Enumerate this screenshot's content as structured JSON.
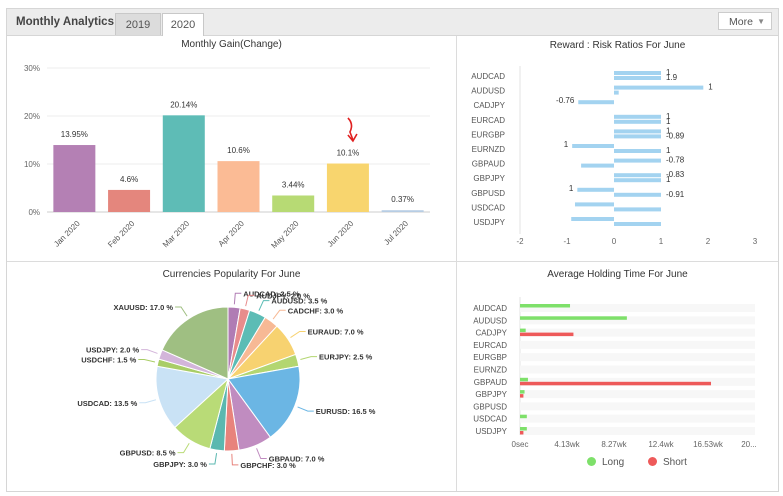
{
  "header": {
    "title": "Monthly Analytics",
    "tabs": [
      {
        "label": "2019",
        "active": false
      },
      {
        "label": "2020",
        "active": true
      }
    ],
    "more_label": "More"
  },
  "monthly_gain": {
    "title": "Monthly Gain(Change)",
    "y_ticks": [
      "30%",
      "20%",
      "10%",
      "0%"
    ],
    "chart_data": {
      "type": "bar",
      "categories": [
        "Jan 2020",
        "Feb 2020",
        "Mar 2020",
        "Apr 2020",
        "May 2020",
        "Jun 2020",
        "Jul 2020"
      ],
      "values": [
        13.95,
        4.6,
        20.14,
        10.6,
        3.44,
        10.1,
        0.37
      ],
      "labels": [
        "13.95%",
        "4.6%",
        "20.14%",
        "10.6%",
        "3.44%",
        "10.1%",
        "0.37%"
      ],
      "colors": [
        "#b480b4",
        "#e4867d",
        "#5ebcb6",
        "#fbbb95",
        "#b7da74",
        "#f8d56e",
        "#b7cde4"
      ],
      "ylim": [
        0,
        30
      ]
    }
  },
  "reward_risk": {
    "title": "Reward : Risk Ratios For June",
    "chart_data": {
      "type": "bar",
      "orientation": "horizontal",
      "categories": [
        "AUDCAD",
        "AUDUSD",
        "CADJPY",
        "EURCAD",
        "EURGBP",
        "EURNZD",
        "GBPAUD",
        "GBPJPY",
        "GBPUSD",
        "USDCAD",
        "USDJPY"
      ],
      "series": [
        {
          "values": [
            1,
            1.9,
            -0.76,
            1,
            1,
            -0.89,
            1,
            1,
            -0.78,
            -0.83,
            -0.91
          ]
        },
        {
          "values": [
            1,
            0.1,
            0,
            1,
            1,
            1,
            -0.7,
            1,
            1,
            1,
            1
          ]
        }
      ],
      "labels": [
        "1",
        "1.9",
        "1",
        "-0.76",
        "1",
        "1",
        "1",
        "-0.89",
        "1",
        "1",
        "-0.78",
        "-0.83",
        "1",
        "1",
        "-0.91"
      ],
      "x_ticks": [
        "-2",
        "-1",
        "0",
        "1",
        "2",
        "3"
      ],
      "xlim": [
        -2,
        3
      ],
      "color": "#a3d3f0"
    }
  },
  "currencies": {
    "title": "Currencies Popularity For June",
    "chart_data": {
      "type": "pie",
      "slices": [
        {
          "label": "AUDCAD",
          "value": 2.5,
          "color": "#b07cb4"
        },
        {
          "label": "AUDJPY",
          "value": 2.0,
          "color": "#e88c8c"
        },
        {
          "label": "AUDUSD",
          "value": 3.5,
          "color": "#5cbcb5"
        },
        {
          "label": "CADCHF",
          "value": 3.0,
          "color": "#f7b995"
        },
        {
          "label": "EURAUD",
          "value": 7.0,
          "color": "#f7d270"
        },
        {
          "label": "EURJPY",
          "value": 2.5,
          "color": "#b3d671"
        },
        {
          "label": "EURUSD",
          "value": 16.5,
          "color": "#6bb6e4"
        },
        {
          "label": "GBPAUD",
          "value": 7.0,
          "color": "#c08cc0"
        },
        {
          "label": "GBPCHF",
          "value": 3.0,
          "color": "#e8837c"
        },
        {
          "label": "GBPJPY",
          "value": 3.0,
          "color": "#5bb8b0"
        },
        {
          "label": "GBPUSD",
          "value": 8.5,
          "color": "#b9db77"
        },
        {
          "label": "USDCAD",
          "value": 13.5,
          "color": "#c9e2f5"
        },
        {
          "label": "USDCHF",
          "value": 1.5,
          "color": "#a9cd66"
        },
        {
          "label": "USDJPY",
          "value": 2.0,
          "color": "#d3b5da"
        },
        {
          "label": "XAUUSD",
          "value": 17.0,
          "color": "#9fbf82"
        }
      ],
      "labels": [
        "AUDCAD: 2.5 %",
        "AUDJPY: 2.0 %",
        "AUDUSD: 3.5 %",
        "CADCHF: 3.0 %",
        "EURAUD: 7.0 %",
        "EURJPY: 2.5 %",
        "EURUSD: 16.5 %",
        "GBPAUD: 7.0 %",
        "GBPCHF: 3.0 %",
        "GBPJPY: 3.0 %",
        "GBPUSD: 8.5 %",
        "USDCAD: 13.5 %",
        "USDCHF: 1.5 %",
        "USDJPY: 2.0 %",
        "XAUUSD: 17.0 %"
      ]
    }
  },
  "holding_time": {
    "title": "Average Holding Time For June",
    "chart_data": {
      "type": "bar",
      "orientation": "horizontal",
      "categories": [
        "AUDCAD",
        "AUDUSD",
        "CADJPY",
        "EURCAD",
        "EURGBP",
        "EURNZD",
        "GBPAUD",
        "GBPJPY",
        "GBPUSD",
        "USDCAD",
        "USDJPY"
      ],
      "x_ticks": [
        "0sec",
        "4.13wk",
        "8.27wk",
        "12.4wk",
        "16.53wk",
        "20..."
      ],
      "xlim_wk": [
        0,
        20.67
      ],
      "series": [
        {
          "name": "Long",
          "color": "#7ee06a",
          "values_wk": [
            4.4,
            9.4,
            0.5,
            0,
            0,
            0,
            0.7,
            0.4,
            0,
            0.6,
            0.6
          ]
        },
        {
          "name": "Short",
          "color": "#ee5a5a",
          "values_wk": [
            0,
            0,
            4.7,
            0,
            0,
            0,
            16.8,
            0.3,
            0,
            0,
            0.3
          ]
        }
      ],
      "legend": [
        "Long",
        "Short"
      ]
    }
  }
}
